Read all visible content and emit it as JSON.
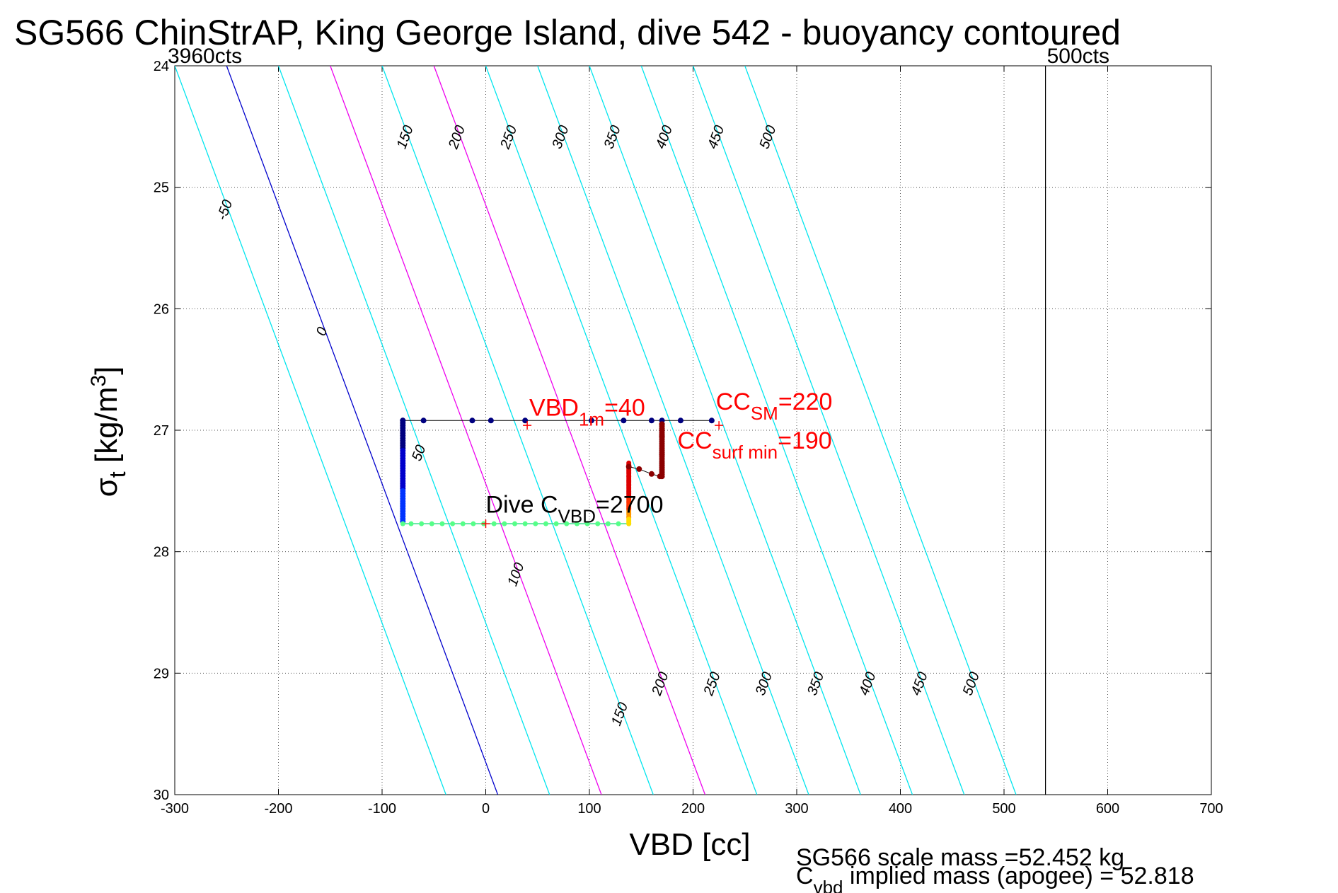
{
  "title": "SG566 ChinStrAP, King George Island, dive 542 - buoyancy contoured",
  "chart_data": {
    "type": "line",
    "xlabel": "VBD [cc]",
    "ylabel_main": "σ",
    "ylabel_sub": "t",
    "ylabel_unit_pre": " [kg/m",
    "ylabel_unit_sup": "3",
    "ylabel_unit_post": "]",
    "xlim": [
      -300,
      700
    ],
    "ylim": [
      24,
      30
    ],
    "y_reversed": true,
    "grid": true,
    "xticks": [
      -300,
      -200,
      -100,
      0,
      100,
      200,
      300,
      400,
      500,
      600,
      700
    ],
    "yticks": [
      24,
      25,
      26,
      27,
      28,
      29,
      30
    ],
    "min_cts_label": "3960cts",
    "max_cts_label": "500cts",
    "max_cts_vbd": 540,
    "contour_slope": 43.6,
    "contours": [
      {
        "value": -50,
        "color": "#00e5ee",
        "x_at_top": -300,
        "label_top": -50,
        "label_bottom": null
      },
      {
        "value": 0,
        "color": "#0000cc",
        "x_at_top": -250,
        "label_top": 0,
        "label_bottom": null
      },
      {
        "value": 50,
        "color": "#00e5ee",
        "x_at_top": -200,
        "label_top": 50,
        "label_bottom": null
      },
      {
        "value": 100,
        "color": "#ee00ee",
        "x_at_top": -150,
        "label_top": 100,
        "label_bottom": null
      },
      {
        "value": 150,
        "color": "#00e5ee",
        "x_at_top": -100,
        "label_top": 150,
        "label_bottom": 150
      },
      {
        "value": 200,
        "color": "#ee00ee",
        "x_at_top": -50,
        "label_top": 200,
        "label_bottom": 200
      },
      {
        "value": 250,
        "color": "#00e5ee",
        "x_at_top": 0,
        "label_top": 250,
        "label_bottom": 250
      },
      {
        "value": 300,
        "color": "#00e5ee",
        "x_at_top": 50,
        "label_top": 300,
        "label_bottom": 300
      },
      {
        "value": 350,
        "color": "#00e5ee",
        "x_at_top": 100,
        "label_top": 350,
        "label_bottom": 350
      },
      {
        "value": 400,
        "color": "#00e5ee",
        "x_at_top": 150,
        "label_top": 400,
        "label_bottom": 400
      },
      {
        "value": 450,
        "color": "#00e5ee",
        "x_at_top": 200,
        "label_top": 450,
        "label_bottom": 450
      },
      {
        "value": 500,
        "color": "#00e5ee",
        "x_at_top": 250,
        "label_top": 500,
        "label_bottom": 500
      }
    ],
    "dive_trace": {
      "descent_top": {
        "x": [
          -80,
          -60,
          -13,
          5,
          38,
          102,
          133,
          160,
          170
        ],
        "y": [
          26.92,
          26.92,
          26.92,
          26.92,
          26.92,
          26.92,
          26.92,
          26.92,
          26.92
        ],
        "color": "#000080"
      },
      "descent_left": {
        "x": -80,
        "y_from": 26.92,
        "y_to": 27.75,
        "color_top": "#000080",
        "color_bottom": "#0044ff"
      },
      "bottom": {
        "x": [
          -80,
          -72,
          -62,
          -52,
          -42,
          -32,
          -22,
          -12,
          -2,
          8,
          18,
          28,
          38,
          48,
          58,
          68,
          78,
          88,
          98,
          108,
          118,
          128,
          138
        ],
        "y": 27.77,
        "color": "#55ff88"
      },
      "ascent": {
        "x": 138,
        "y_from": 27.77,
        "y_to": 27.27,
        "color_top": "#dd0000",
        "color_bottom": "#ffcc00"
      },
      "surface_points": {
        "x": [
          138,
          148,
          160,
          168,
          170,
          170,
          170
        ],
        "y": [
          27.3,
          27.32,
          27.36,
          27.38,
          27.2,
          27.05,
          26.95
        ],
        "color": "#8b0000"
      },
      "surface_right": {
        "x": [
          188,
          218
        ],
        "y": [
          26.92,
          26.92
        ],
        "color": "#000080"
      }
    },
    "markers": [
      {
        "x": 40,
        "y": 26.96,
        "color": "#ff0000"
      },
      {
        "x": 0,
        "y": 27.77,
        "color": "#ff0000"
      },
      {
        "x": 225,
        "y": 26.96,
        "color": "#ff0000"
      }
    ],
    "annotations": {
      "vbd_1m_pre": "VBD",
      "vbd_1m_sub": "1m",
      "vbd_1m_post": "=40",
      "cc_sm_pre": "CC",
      "cc_sm_sub": "SM",
      "cc_sm_post": "=220",
      "cc_surf_pre": "CC",
      "cc_surf_sub": "surf min",
      "cc_surf_post": "=190",
      "dive_pre": "Dive C",
      "dive_sub": "VBD",
      "dive_post": "=2700"
    },
    "footer": {
      "line1": "SG566 scale mass =52.452 kg",
      "line2_pre": "C",
      "line2_sub": "vbd",
      "line2_post": " implied mass (apogee) = 52.818"
    }
  }
}
